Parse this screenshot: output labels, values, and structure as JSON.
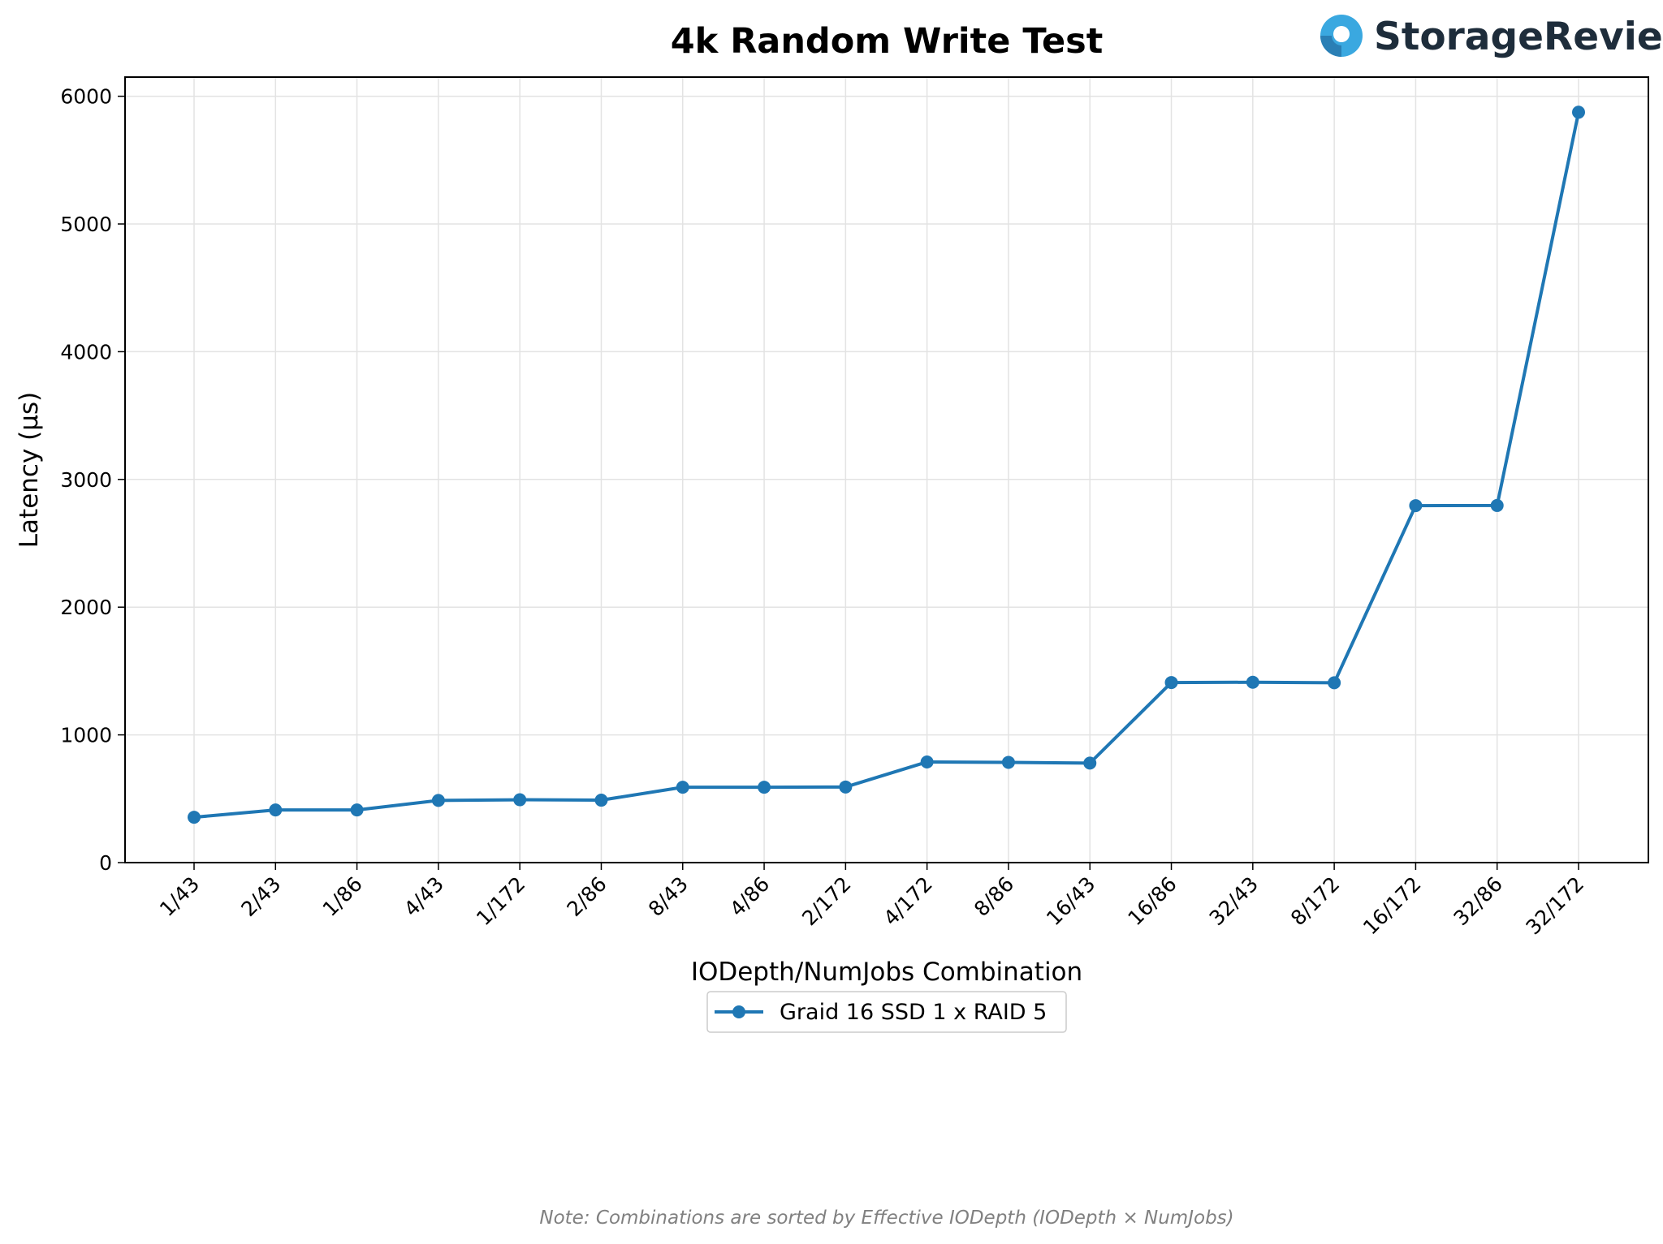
{
  "brand": {
    "name": "StorageReview",
    "icon": "storagereview-logo-icon",
    "icon_color": "#3aa8e0"
  },
  "note": "Note: Combinations are sorted by Effective IODepth (IODepth × NumJobs)",
  "chart_data": {
    "type": "line",
    "title": "4k Random Write Test",
    "xlabel": "IODepth/NumJobs Combination",
    "ylabel": "Latency (µs)",
    "categories": [
      "1/43",
      "2/43",
      "1/86",
      "4/43",
      "1/172",
      "2/86",
      "8/43",
      "4/86",
      "2/172",
      "4/172",
      "8/86",
      "16/43",
      "16/86",
      "32/43",
      "8/172",
      "16/172",
      "32/86",
      "32/172"
    ],
    "series": [
      {
        "name": "Graid 16 SSD 1 x RAID 5",
        "color": "#1f77b4",
        "marker": "circle",
        "values": [
          355,
          412,
          412,
          487,
          492,
          489,
          590,
          590,
          592,
          788,
          785,
          779,
          1410,
          1412,
          1408,
          2795,
          2796,
          5875
        ]
      }
    ],
    "ylim": [
      0,
      6150
    ],
    "yticks": [
      0,
      1000,
      2000,
      3000,
      4000,
      5000,
      6000
    ],
    "grid": true,
    "legend_position": "bottom-center"
  }
}
